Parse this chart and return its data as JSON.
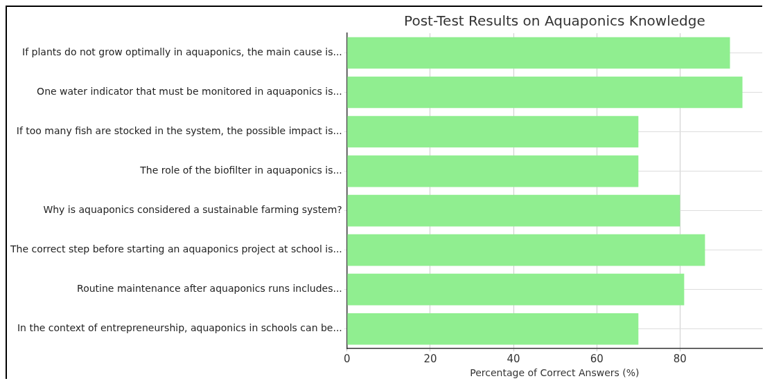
{
  "chart_data": {
    "type": "bar",
    "orientation": "horizontal",
    "title": "Post-Test Results on Aquaponics Knowledge",
    "xlabel": "Percentage of Correct Answers (%)",
    "categories": [
      "If plants do not grow optimally in aquaponics, the main cause is...",
      "One water indicator that must be monitored in aquaponics is...",
      "If too many fish are stocked in the system, the possible impact is...",
      "The role of the biofilter in aquaponics is...",
      "Why is aquaponics considered a sustainable farming system?",
      "The correct step before starting an aquaponics project at school is...",
      "Routine maintenance after aquaponics runs includes...",
      "In the context of entrepreneurship, aquaponics in schools can be..."
    ],
    "values": [
      92,
      95,
      70,
      70,
      80,
      86,
      81,
      70
    ],
    "color": "#90ee90",
    "xlim": [
      0,
      99.75
    ],
    "xticks": [
      0,
      20,
      40,
      60,
      80
    ],
    "grid": true
  }
}
